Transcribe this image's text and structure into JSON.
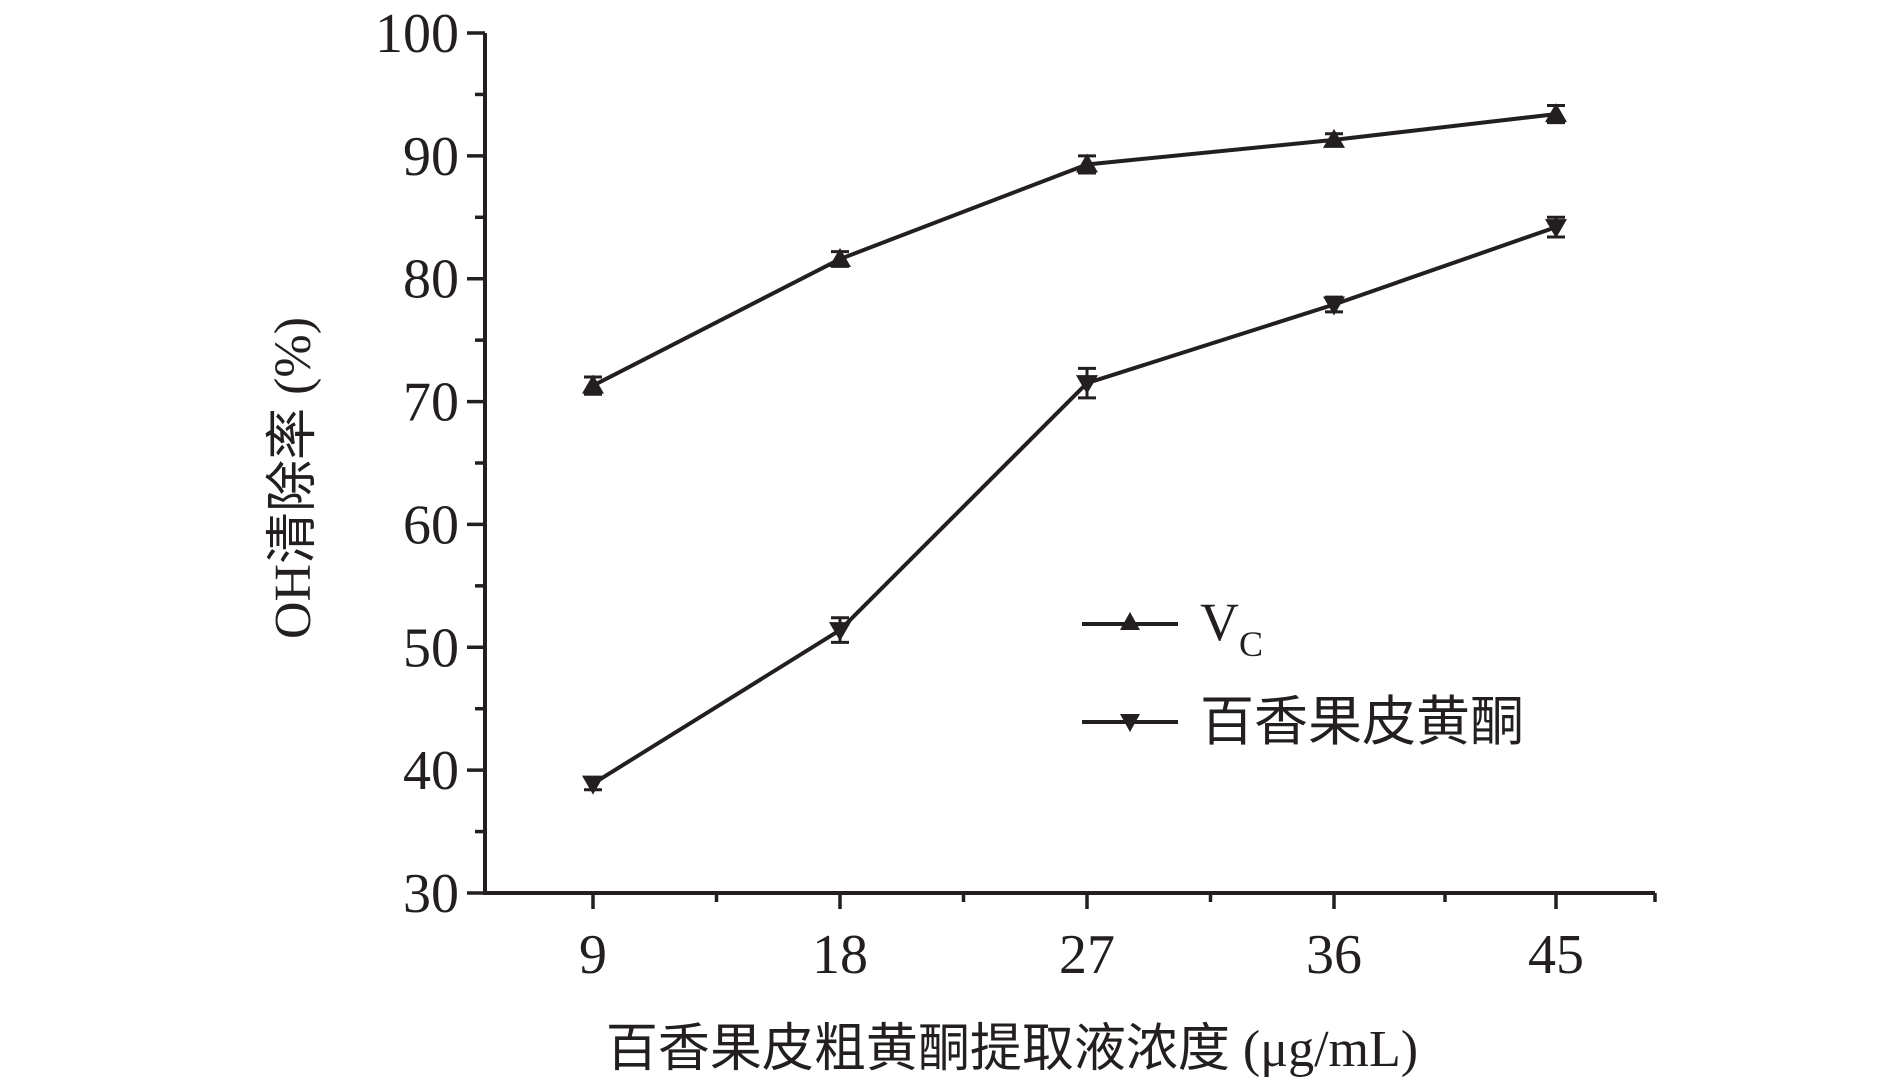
{
  "chart_data": {
    "type": "line",
    "xlabel": "百香果皮粗黄酮提取液浓度 (μg/mL)",
    "ylabel": "OH清除率 (%)",
    "ylim": [
      30,
      100
    ],
    "yticks": [
      "30",
      "40",
      "50",
      "60",
      "70",
      "80",
      "90",
      "100"
    ],
    "categories": [
      "9",
      "18",
      "27",
      "36",
      "45"
    ],
    "grid": false,
    "legend_position": "center-right",
    "series": [
      {
        "name": "VC",
        "label_main": "V",
        "label_sub": "C",
        "marker": "triangle-up",
        "x": [
          9,
          18,
          27,
          36,
          45
        ],
        "values": [
          71.3,
          81.6,
          89.3,
          91.3,
          93.4
        ],
        "errors": [
          0.7,
          0.6,
          0.7,
          0.5,
          0.7
        ]
      },
      {
        "name": "百香果皮黄酮",
        "marker": "triangle-down",
        "x": [
          9,
          18,
          27,
          36,
          45
        ],
        "values": [
          38.9,
          51.4,
          71.5,
          77.9,
          84.2
        ],
        "errors": [
          0.5,
          1.0,
          1.2,
          0.6,
          0.8
        ]
      }
    ],
    "color": "#231f20"
  }
}
